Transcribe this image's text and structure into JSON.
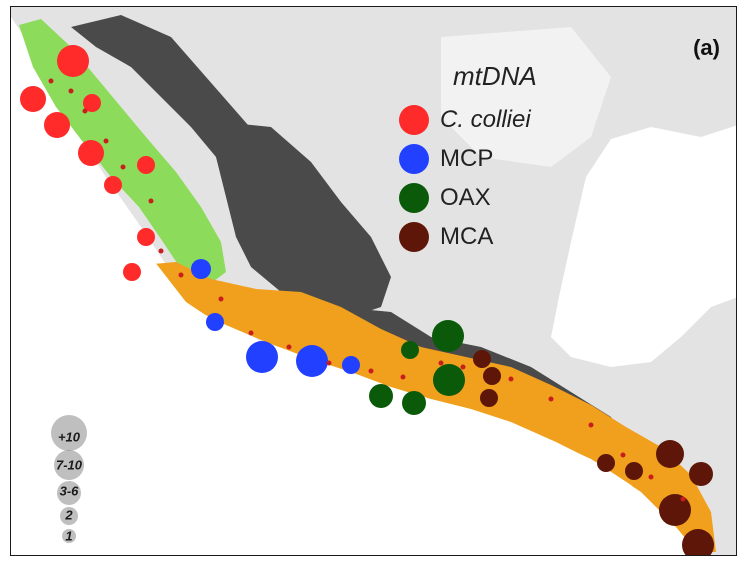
{
  "panel_label": "(a)",
  "legend": {
    "title": "mtDNA",
    "items": [
      {
        "label": "C. colliei",
        "color": "#ff2a2a",
        "italic": true
      },
      {
        "label": "MCP",
        "color": "#2140ff",
        "italic": false
      },
      {
        "label": "OAX",
        "color": "#0a5a0a",
        "italic": false
      },
      {
        "label": "MCA",
        "color": "#5e1608",
        "italic": false
      }
    ]
  },
  "size_legend": [
    "+10",
    "7-10",
    "3-6",
    "2",
    "1"
  ],
  "colors": {
    "ocean": "#ffffff",
    "land": "#e3e3e3",
    "highland": "#4a4a4a",
    "range_colliei": "#8ddb5a",
    "range_orange": "#f0a01c",
    "sample_dot": "#c81e1e",
    "size_circle": "#8a8a8a"
  }
}
